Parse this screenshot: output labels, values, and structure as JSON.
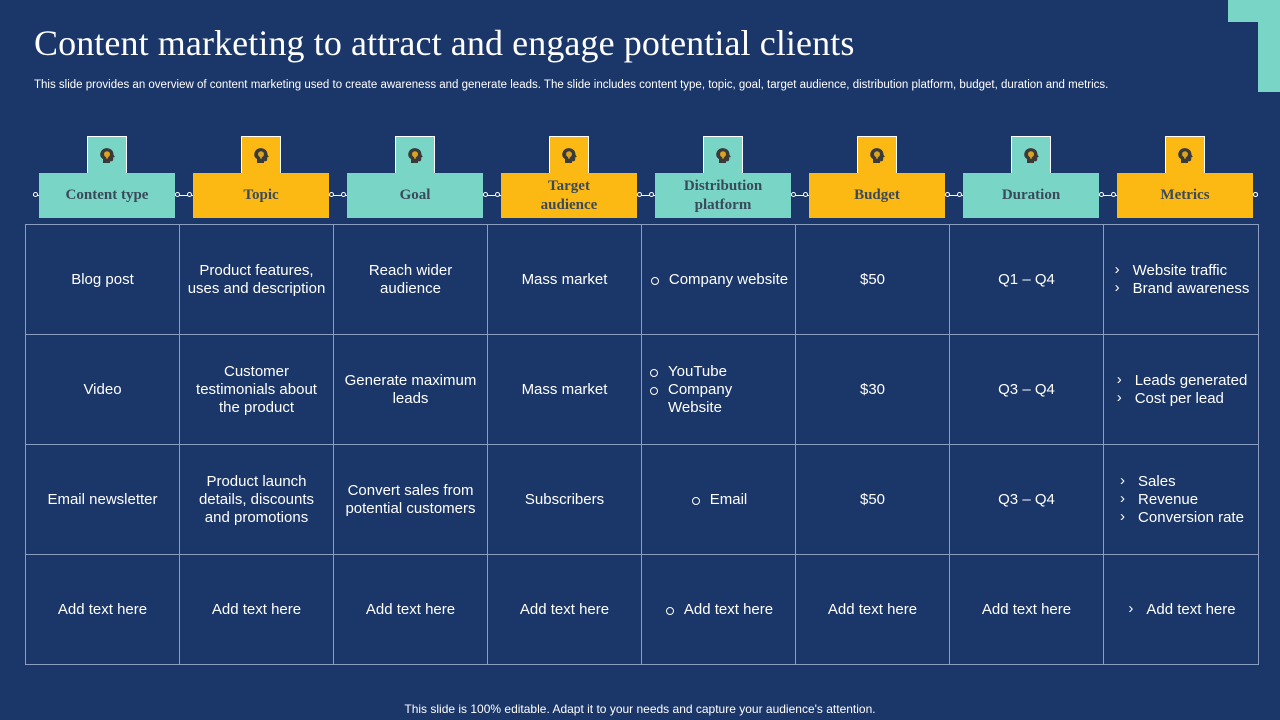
{
  "slide": {
    "title": "Content marketing to attract and engage potential clients",
    "subtitle": "This slide provides an overview of content marketing used to create awareness and generate leads. The slide includes content type, topic, goal, target audience, distribution platform, budget, duration and metrics.",
    "footer": "This slide is 100% editable. Adapt it to your needs and capture your audience's attention."
  },
  "colors": {
    "background": "#1b3668",
    "teal": "#79d5c5",
    "gold": "#fdb913",
    "header_text": "#3a4a5a"
  },
  "columns": [
    {
      "label": "Content type",
      "icon": "lightbulb-head-icon",
      "color": "teal"
    },
    {
      "label": "Topic",
      "icon": "lightbulb-head-icon",
      "color": "gold"
    },
    {
      "label": "Goal",
      "icon": "lightbulb-head-icon",
      "color": "teal"
    },
    {
      "label": "Target\naudience",
      "icon": "lightbulb-head-icon",
      "color": "gold"
    },
    {
      "label": "Distribution\nplatform",
      "icon": "lightbulb-head-icon",
      "color": "teal"
    },
    {
      "label": "Budget",
      "icon": "lightbulb-head-icon",
      "color": "gold"
    },
    {
      "label": "Duration",
      "icon": "lightbulb-head-icon",
      "color": "teal"
    },
    {
      "label": "Metrics",
      "icon": "lightbulb-head-icon",
      "color": "gold"
    }
  ],
  "rows": [
    {
      "content_type": "Blog post",
      "topic": "Product features, uses and description",
      "goal": "Reach wider audience",
      "audience": "Mass market",
      "platforms": [
        "Company website"
      ],
      "budget": "$50",
      "duration": "Q1 – Q4",
      "metrics": [
        "Website traffic",
        "Brand awareness"
      ]
    },
    {
      "content_type": "Video",
      "topic": "Customer testimonials about the product",
      "goal": "Generate maximum leads",
      "audience": "Mass market",
      "platforms": [
        "YouTube",
        "Company Website"
      ],
      "budget": "$30",
      "duration": "Q3 – Q4",
      "metrics": [
        "Leads generated",
        "Cost per lead"
      ]
    },
    {
      "content_type": "Email newsletter",
      "topic": "Product launch details, discounts and promotions",
      "goal": "Convert sales from potential customers",
      "audience": "Subscribers",
      "platforms": [
        "Email"
      ],
      "budget": "$50",
      "duration": "Q3 – Q4",
      "metrics": [
        "Sales",
        "Revenue",
        "Conversion rate"
      ]
    },
    {
      "content_type": "Add text here",
      "topic": "Add text here",
      "goal": "Add text here",
      "audience": "Add text here",
      "platforms": [
        "Add text here"
      ],
      "budget": "Add text here",
      "duration": "Add text here",
      "metrics": [
        "Add text here"
      ]
    }
  ]
}
